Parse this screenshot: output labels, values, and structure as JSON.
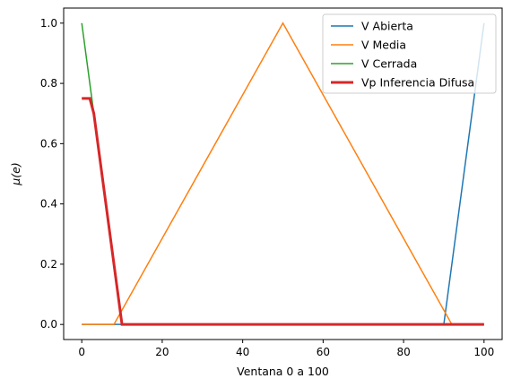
{
  "chart_data": {
    "type": "line",
    "title": "",
    "xlabel": "Ventana 0 a 100",
    "ylabel": "μ(e)",
    "xlim": [
      -4.5,
      104.5
    ],
    "ylim": [
      -0.05,
      1.05
    ],
    "xticks": [
      0,
      20,
      40,
      60,
      80,
      100
    ],
    "xtick_labels": [
      "0",
      "20",
      "40",
      "60",
      "80",
      "100"
    ],
    "yticks": [
      0.0,
      0.2,
      0.4,
      0.6,
      0.8,
      1.0
    ],
    "ytick_labels": [
      "0.0",
      "0.2",
      "0.4",
      "0.6",
      "0.8",
      "1.0"
    ],
    "grid": false,
    "legend_position": "top-right",
    "series": [
      {
        "name": "V Abierta",
        "color": "#1f77b4",
        "line_width": 1.5,
        "points": [
          [
            0,
            0
          ],
          [
            90,
            0
          ],
          [
            100,
            1
          ]
        ]
      },
      {
        "name": "V Media",
        "color": "#ff7f0e",
        "line_width": 1.5,
        "points": [
          [
            0,
            0
          ],
          [
            8,
            0
          ],
          [
            50,
            1
          ],
          [
            92,
            0
          ],
          [
            100,
            0
          ]
        ]
      },
      {
        "name": "V Cerrada",
        "color": "#2ca02c",
        "line_width": 1.5,
        "points": [
          [
            0,
            1
          ],
          [
            10,
            0
          ],
          [
            100,
            0
          ]
        ]
      },
      {
        "name": "Vp Inferencia Difusa",
        "color": "#d62728",
        "line_width": 3,
        "points": [
          [
            0,
            0.75
          ],
          [
            2,
            0.75
          ],
          [
            3,
            0.7
          ],
          [
            10,
            0
          ],
          [
            100,
            0
          ]
        ]
      }
    ]
  }
}
